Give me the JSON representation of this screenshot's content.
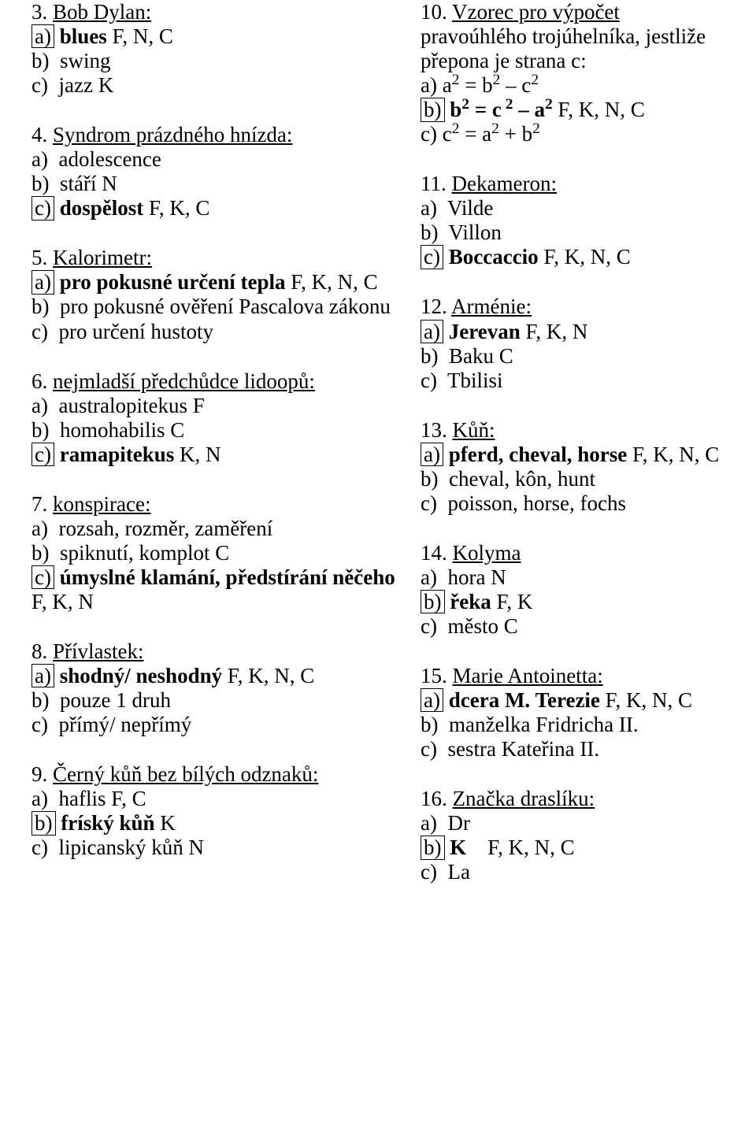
{
  "font_family": "Times New Roman",
  "base_font_size_pt": 20,
  "text_color": "#000000",
  "background_color": "#ffffff",
  "left_column": [
    {
      "number": "3.",
      "title": "Bob Dylan:",
      "options": [
        {
          "letter": "a)",
          "boxed": true,
          "text_bold": "blues",
          "text_rest": " F, N, C"
        },
        {
          "letter": "b)",
          "boxed": false,
          "text_rest": " swing"
        },
        {
          "letter": "c)",
          "boxed": false,
          "text_rest": " jazz K"
        }
      ]
    },
    {
      "number": "4.",
      "title": "Syndrom prázdného hnízda:",
      "options": [
        {
          "letter": "a)",
          "boxed": false,
          "text_rest": " adolescence"
        },
        {
          "letter": "b)",
          "boxed": false,
          "text_rest": " stáří N"
        },
        {
          "letter": "c)",
          "boxed": true,
          "text_bold": "dospělost",
          "text_rest": " F, K, C"
        }
      ]
    },
    {
      "number": "5.",
      "title": "Kalorimetr:",
      "options": [
        {
          "letter": "a)",
          "boxed": true,
          "text_bold": "pro pokusné určení tepla",
          "text_rest": " F, K, N, C",
          "trailing_lines": []
        },
        {
          "letter": "b)",
          "boxed": false,
          "text_rest": " pro pokusné ověření Pascalova zákonu"
        },
        {
          "letter": "c)",
          "boxed": false,
          "text_rest": " pro určení hustoty"
        }
      ]
    },
    {
      "number": "6.",
      "title": "nejmladší předchůdce lidoopů:",
      "options": [
        {
          "letter": "a)",
          "boxed": false,
          "text_rest": " australopitekus F"
        },
        {
          "letter": "b)",
          "boxed": false,
          "text_rest": " homohabilis C"
        },
        {
          "letter": "c)",
          "boxed": true,
          "text_bold": "ramapitekus",
          "text_rest": " K, N"
        }
      ]
    },
    {
      "number": "7.",
      "title": "konspirace:",
      "options": [
        {
          "letter": "a)",
          "boxed": false,
          "text_rest": " rozsah, rozměr, zaměření"
        },
        {
          "letter": "b)",
          "boxed": false,
          "text_rest": " spiknutí, komplot C"
        },
        {
          "letter": "c)",
          "boxed": true,
          "text_bold": "úmyslné klamání, předstírání něčeho",
          "text_rest": " F, K, N"
        }
      ]
    },
    {
      "number": "8.",
      "title": "Přívlastek:",
      "options": [
        {
          "letter": "a)",
          "boxed": true,
          "text_bold": "shodný/ neshodný",
          "text_rest": " F, K, N, C"
        },
        {
          "letter": "b)",
          "boxed": false,
          "text_rest": " pouze 1 druh"
        },
        {
          "letter": "c)",
          "boxed": false,
          "text_rest": " přímý/ nepřímý"
        }
      ]
    },
    {
      "number": "9.",
      "title": "Černý kůň bez bílých odznaků:",
      "options": [
        {
          "letter": "a)",
          "boxed": false,
          "text_rest": " haflis F, C"
        },
        {
          "letter": "b)",
          "boxed": true,
          "text_bold": "fríský kůň",
          "text_rest": " K"
        },
        {
          "letter": "c)",
          "boxed": false,
          "text_rest": " lipicanský kůň N"
        }
      ]
    }
  ],
  "right_column": [
    {
      "number": "10.",
      "title": "Vzorec pro výpočet",
      "title_extra": [
        "pravoúhlého trojúhelníka, jestliže",
        "přepona je strana c:"
      ],
      "options": [
        {
          "letter": "a)",
          "boxed": false,
          "html": " a<sup>2</sup> = b<sup>2</sup> – c<sup>2</sup>"
        },
        {
          "letter": "b)",
          "boxed": true,
          "html_bold": "b<sup>2</sup> = c<sup>&nbsp;2</sup> – a<sup>2</sup>",
          "text_rest": " F, K, N, C"
        },
        {
          "letter": "c)",
          "boxed": false,
          "html": " c<sup>2</sup> = a<sup>2</sup> + b<sup>2</sup>"
        }
      ]
    },
    {
      "number": "11.",
      "title": "Dekameron:",
      "options": [
        {
          "letter": "a)",
          "boxed": false,
          "text_rest": " Vilde"
        },
        {
          "letter": "b)",
          "boxed": false,
          "text_rest": " Villon"
        },
        {
          "letter": "c)",
          "boxed": true,
          "text_bold": "Boccaccio",
          "text_rest": " F, K, N, C"
        }
      ]
    },
    {
      "number": "12.",
      "title": "Arménie:",
      "options": [
        {
          "letter": "a)",
          "boxed": true,
          "text_bold": "Jerevan",
          "text_rest": " F, K, N"
        },
        {
          "letter": "b)",
          "boxed": false,
          "text_rest": " Baku C"
        },
        {
          "letter": "c)",
          "boxed": false,
          "text_rest": " Tbilisi"
        }
      ]
    },
    {
      "number": "13.",
      "title": "Kůň:",
      "options": [
        {
          "letter": "a)",
          "boxed": true,
          "text_bold": "pferd, cheval, horse",
          "text_rest": " F, K, N, C"
        },
        {
          "letter": "b)",
          "boxed": false,
          "text_rest": " cheval, kôn, hunt"
        },
        {
          "letter": "c)",
          "boxed": false,
          "text_rest": " poisson, horse, fochs"
        }
      ]
    },
    {
      "number": "14.",
      "title": "Kolyma",
      "options": [
        {
          "letter": "a)",
          "boxed": false,
          "text_rest": " hora N"
        },
        {
          "letter": "b)",
          "boxed": true,
          "text_bold": "řeka",
          "text_rest": " F, K"
        },
        {
          "letter": "c)",
          "boxed": false,
          "text_rest": " město C"
        }
      ]
    },
    {
      "number": "15.",
      "title": "Marie Antoinetta:",
      "options": [
        {
          "letter": "a)",
          "boxed": true,
          "text_bold": "dcera M. Terezie",
          "text_rest": " F, K, N, C"
        },
        {
          "letter": "b)",
          "boxed": false,
          "text_rest": " manželka Fridricha II."
        },
        {
          "letter": "c)",
          "boxed": false,
          "text_rest": " sestra Kateřina II."
        }
      ]
    },
    {
      "number": "16.",
      "title": "Značka draslíku:",
      "options": [
        {
          "letter": "a)",
          "boxed": false,
          "text_rest": " Dr"
        },
        {
          "letter": "b)",
          "boxed": true,
          "text_bold": "K",
          "text_rest": "    F, K, N, C"
        },
        {
          "letter": "c)",
          "boxed": false,
          "text_rest": " La"
        }
      ]
    }
  ]
}
